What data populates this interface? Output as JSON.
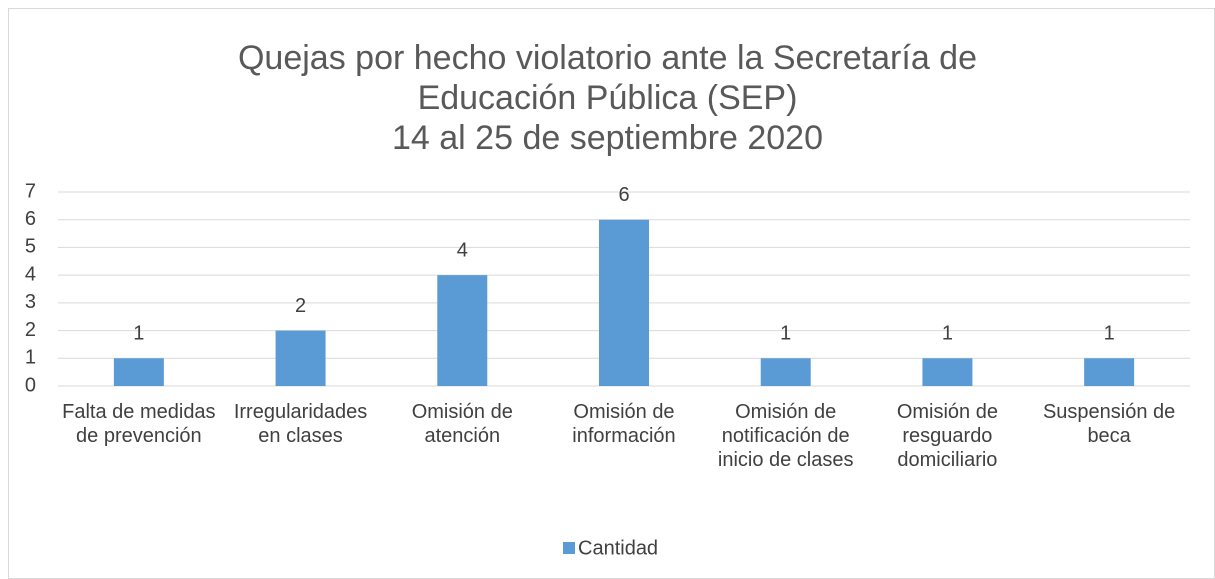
{
  "chart_data": {
    "type": "bar",
    "title": "Quejas por hecho violatorio ante la Secretaría de\nEducación Pública (SEP)\n14 al 25 de septiembre 2020",
    "categories": [
      "Falta de medidas de prevención",
      "Irregularidades en clases",
      "Omisión de atención",
      "Omisión de información",
      "Omisión de notificación de inicio de clases",
      "Omisión de resguardo domiciliario",
      "Suspensión de beca"
    ],
    "series": [
      {
        "name": "Cantidad",
        "color": "#5b9bd5",
        "values": [
          1,
          2,
          4,
          6,
          1,
          1,
          1
        ]
      }
    ],
    "ylim": [
      0,
      7
    ],
    "yticks": [
      0,
      1,
      2,
      3,
      4,
      5,
      6,
      7
    ],
    "grid": true,
    "legend": "bottom"
  }
}
